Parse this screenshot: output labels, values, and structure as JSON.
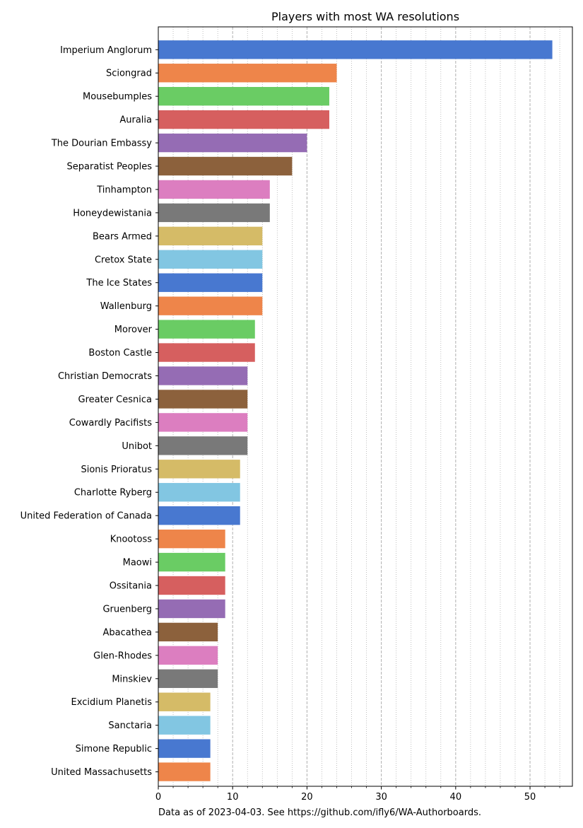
{
  "chart_data": {
    "type": "bar",
    "orientation": "horizontal",
    "title": "Players with most WA resolutions",
    "xlabel": "",
    "ylabel": "",
    "xlim": [
      0,
      55.7
    ],
    "xticks": [
      0,
      10,
      20,
      30,
      40,
      50
    ],
    "grid": {
      "major_x": "dashed",
      "minor_x": "dotted",
      "minor_step": 2
    },
    "categories": [
      "Imperium Anglorum",
      "Sciongrad",
      "Mousebumples",
      "Auralia",
      "The Dourian Embassy",
      "Separatist Peoples",
      "Tinhampton",
      "Honeydewistania",
      "Bears Armed",
      "Cretox State",
      "The Ice States",
      "Wallenburg",
      "Morover",
      "Boston Castle",
      "Christian Democrats",
      "Greater Cesnica",
      "Cowardly Pacifists",
      "Unibot",
      "Sionis Prioratus",
      "Charlotte Ryberg",
      "United Federation of Canada",
      "Knootoss",
      "Maowi",
      "Ossitania",
      "Gruenberg",
      "Abacathea",
      "Glen-Rhodes",
      "Minskiev",
      "Excidium Planetis",
      "Sanctaria",
      "Simone Republic",
      "United Massachusetts"
    ],
    "values": [
      53,
      24,
      23,
      23,
      20,
      18,
      15,
      15,
      14,
      14,
      14,
      14,
      13,
      13,
      12,
      12,
      12,
      12,
      11,
      11,
      11,
      9,
      9,
      9,
      9,
      8,
      8,
      8,
      7,
      7,
      7,
      7
    ],
    "colors": [
      "#4878d0",
      "#ee854a",
      "#6acc64",
      "#d65f5f",
      "#956cb4",
      "#8c613c",
      "#dc7ec0",
      "#797979",
      "#d5bb67",
      "#82c6e2"
    ],
    "footnote": "Data as of 2023-04-03. See https://github.com/ifly6/WA-Authorboards."
  }
}
